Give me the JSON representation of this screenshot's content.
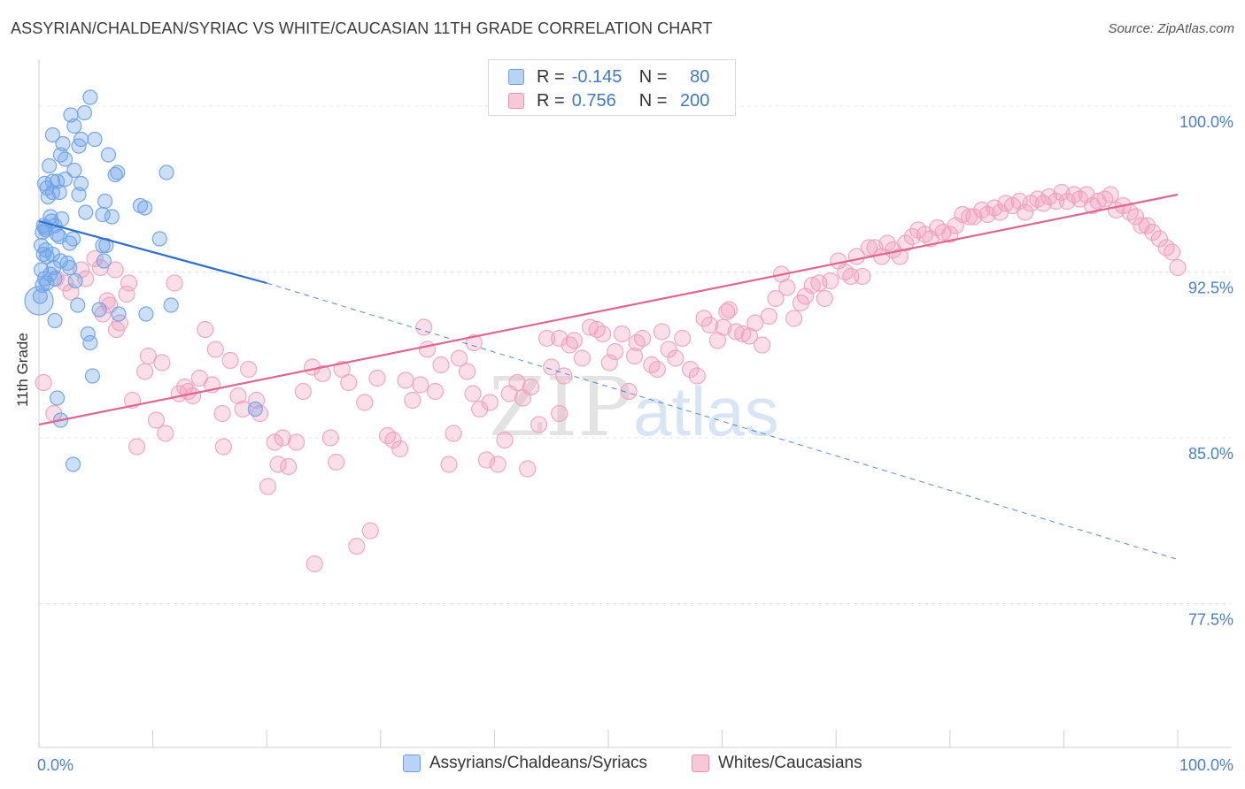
{
  "title": "ASSYRIAN/CHALDEAN/SYRIAC VS WHITE/CAUCASIAN 11TH GRADE CORRELATION CHART",
  "source": "Source: ZipAtlas.com",
  "watermark": {
    "zip": "ZIP",
    "atlas": "atlas"
  },
  "legend": {
    "rows": [
      {
        "r_label": "R =",
        "r_value": "-0.145",
        "n_label": "N =",
        "n_value": "80"
      },
      {
        "r_label": "R =",
        "r_value": "0.756",
        "n_label": "N =",
        "n_value": "200"
      }
    ]
  },
  "chart_data": {
    "type": "scatter",
    "title": "ASSYRIAN/CHALDEAN/SYRIAC VS WHITE/CAUCASIAN 11TH GRADE CORRELATION CHART",
    "xlabel": "",
    "ylabel": "11th Grade",
    "xlim": [
      0,
      100
    ],
    "ylim": [
      70,
      100
    ],
    "x_tick_labels": [
      "0.0%",
      "100.0%"
    ],
    "y_ticks": [
      77.5,
      85.0,
      92.5,
      100.0
    ],
    "y_tick_labels": [
      "77.5%",
      "85.0%",
      "92.5%",
      "100.0%"
    ],
    "grid": "horizontal dashed",
    "legend_position": "bottom",
    "colors": {
      "blue": "#6fa3e8",
      "blue_line": "#2c6fcf",
      "pink": "#f0a0bd",
      "pink_line": "#e06690"
    },
    "series": [
      {
        "name": "Assyrians/Chaldeans/Syriacs",
        "color": "#6fa3e8",
        "trend": {
          "x": [
            0,
            20
          ],
          "y": [
            94.8,
            92.0
          ],
          "dashed_extension": {
            "x": [
              20,
              100
            ],
            "y": [
              92.0,
              79.5
            ]
          }
        },
        "points": [
          [
            4.5,
            100.4
          ],
          [
            4.0,
            99.7
          ],
          [
            2.8,
            99.6
          ],
          [
            3.1,
            99.1
          ],
          [
            1.2,
            98.7
          ],
          [
            3.7,
            98.5
          ],
          [
            4.9,
            98.5
          ],
          [
            2.1,
            98.3
          ],
          [
            3.5,
            98.2
          ],
          [
            1.9,
            97.8
          ],
          [
            6.1,
            97.8
          ],
          [
            2.3,
            97.6
          ],
          [
            0.9,
            97.3
          ],
          [
            6.9,
            97.0
          ],
          [
            3.1,
            97.1
          ],
          [
            11.2,
            97.0
          ],
          [
            6.7,
            96.9
          ],
          [
            0.5,
            96.5
          ],
          [
            1.6,
            96.6
          ],
          [
            1.2,
            96.6
          ],
          [
            2.3,
            96.7
          ],
          [
            0.7,
            96.3
          ],
          [
            3.7,
            96.5
          ],
          [
            1.8,
            96.1
          ],
          [
            1.2,
            96.1
          ],
          [
            3.5,
            96.0
          ],
          [
            5.8,
            95.7
          ],
          [
            8.9,
            95.5
          ],
          [
            9.3,
            95.4
          ],
          [
            4.1,
            95.2
          ],
          [
            5.6,
            95.1
          ],
          [
            6.4,
            95.0
          ],
          [
            1.0,
            95.0
          ],
          [
            0.4,
            94.6
          ],
          [
            0.5,
            94.5
          ],
          [
            1.1,
            94.8
          ],
          [
            1.4,
            94.6
          ],
          [
            0.6,
            94.4
          ],
          [
            0.3,
            94.3
          ],
          [
            1.6,
            94.2
          ],
          [
            1.8,
            94.1
          ],
          [
            3.0,
            94.0
          ],
          [
            10.6,
            94.0
          ],
          [
            2.7,
            93.8
          ],
          [
            5.9,
            93.7
          ],
          [
            5.6,
            93.7
          ],
          [
            0.6,
            93.5
          ],
          [
            0.4,
            93.3
          ],
          [
            1.2,
            93.3
          ],
          [
            0.7,
            93.2
          ],
          [
            1.9,
            93.0
          ],
          [
            5.7,
            93.0
          ],
          [
            2.5,
            92.9
          ],
          [
            1.3,
            92.7
          ],
          [
            2.7,
            92.7
          ],
          [
            0.2,
            92.6
          ],
          [
            1.0,
            92.4
          ],
          [
            0.5,
            92.2
          ],
          [
            1.4,
            92.2
          ],
          [
            0.7,
            92.0
          ],
          [
            0.3,
            91.9
          ],
          [
            0.1,
            91.4
          ],
          [
            3.4,
            91.0
          ],
          [
            5.3,
            90.8
          ],
          [
            9.4,
            90.6
          ],
          [
            7.0,
            90.6
          ],
          [
            11.6,
            91.0
          ],
          [
            1.4,
            90.3
          ],
          [
            4.3,
            89.7
          ],
          [
            4.5,
            89.3
          ],
          [
            4.7,
            87.8
          ],
          [
            1.6,
            86.8
          ],
          [
            19.0,
            86.3
          ],
          [
            1.9,
            85.8
          ],
          [
            3.0,
            83.8
          ],
          [
            0.0,
            91.2
          ],
          [
            0.2,
            93.7
          ],
          [
            2.0,
            94.9
          ],
          [
            0.8,
            95.9
          ],
          [
            3.2,
            92.1
          ]
        ]
      },
      {
        "name": "Whites/Caucasians",
        "color": "#f0a0bd",
        "trend": {
          "x": [
            0,
            100
          ],
          "y": [
            85.6,
            96.0
          ]
        },
        "points": [
          [
            0.4,
            87.5
          ],
          [
            1.3,
            86.1
          ],
          [
            1.5,
            92.2
          ],
          [
            2.3,
            92.0
          ],
          [
            2.8,
            91.6
          ],
          [
            3.7,
            92.6
          ],
          [
            4.1,
            92.2
          ],
          [
            4.9,
            93.1
          ],
          [
            5.4,
            92.7
          ],
          [
            5.6,
            90.6
          ],
          [
            6.0,
            91.2
          ],
          [
            6.2,
            91.0
          ],
          [
            6.7,
            92.6
          ],
          [
            6.8,
            89.9
          ],
          [
            7.1,
            90.2
          ],
          [
            7.7,
            91.5
          ],
          [
            7.9,
            92.0
          ],
          [
            8.2,
            86.7
          ],
          [
            8.6,
            84.6
          ],
          [
            9.3,
            88.0
          ],
          [
            9.6,
            88.7
          ],
          [
            10.3,
            85.8
          ],
          [
            10.8,
            88.4
          ],
          [
            11.1,
            85.2
          ],
          [
            11.9,
            92.0
          ],
          [
            12.3,
            87.0
          ],
          [
            12.8,
            87.3
          ],
          [
            13.1,
            87.1
          ],
          [
            13.5,
            86.9
          ],
          [
            14.1,
            87.7
          ],
          [
            14.6,
            89.9
          ],
          [
            15.2,
            87.4
          ],
          [
            15.5,
            89.0
          ],
          [
            16.1,
            86.1
          ],
          [
            16.2,
            84.6
          ],
          [
            16.8,
            88.5
          ],
          [
            17.5,
            86.9
          ],
          [
            17.9,
            86.3
          ],
          [
            18.4,
            88.1
          ],
          [
            19.1,
            86.7
          ],
          [
            19.4,
            86.1
          ],
          [
            20.1,
            82.8
          ],
          [
            20.7,
            84.8
          ],
          [
            21.0,
            83.8
          ],
          [
            21.4,
            85.0
          ],
          [
            21.9,
            83.7
          ],
          [
            22.6,
            84.8
          ],
          [
            23.2,
            87.1
          ],
          [
            24.0,
            88.2
          ],
          [
            24.2,
            79.3
          ],
          [
            24.9,
            87.9
          ],
          [
            25.6,
            85.0
          ],
          [
            26.1,
            83.9
          ],
          [
            26.6,
            88.1
          ],
          [
            27.2,
            87.5
          ],
          [
            27.9,
            80.1
          ],
          [
            28.6,
            86.6
          ],
          [
            29.1,
            80.8
          ],
          [
            29.7,
            87.7
          ],
          [
            30.6,
            85.1
          ],
          [
            31.1,
            84.9
          ],
          [
            31.7,
            84.5
          ],
          [
            32.2,
            87.6
          ],
          [
            32.8,
            86.7
          ],
          [
            33.5,
            87.4
          ],
          [
            34.1,
            89.0
          ],
          [
            34.8,
            87.1
          ],
          [
            35.3,
            88.3
          ],
          [
            36.0,
            83.8
          ],
          [
            36.4,
            85.2
          ],
          [
            36.9,
            88.6
          ],
          [
            37.6,
            88.0
          ],
          [
            38.1,
            87.0
          ],
          [
            38.7,
            86.3
          ],
          [
            39.3,
            84.0
          ],
          [
            39.6,
            86.6
          ],
          [
            40.3,
            83.8
          ],
          [
            40.9,
            84.9
          ],
          [
            41.3,
            87.0
          ],
          [
            42.0,
            87.5
          ],
          [
            42.5,
            86.8
          ],
          [
            43.2,
            87.3
          ],
          [
            43.9,
            85.6
          ],
          [
            44.6,
            89.5
          ],
          [
            45.0,
            88.2
          ],
          [
            45.7,
            89.5
          ],
          [
            46.1,
            87.8
          ],
          [
            46.6,
            89.2
          ],
          [
            47.0,
            89.4
          ],
          [
            47.7,
            88.6
          ],
          [
            48.4,
            90.0
          ],
          [
            49.0,
            89.9
          ],
          [
            49.5,
            89.7
          ],
          [
            50.1,
            88.4
          ],
          [
            50.6,
            88.9
          ],
          [
            51.2,
            89.7
          ],
          [
            51.8,
            87.1
          ],
          [
            52.5,
            89.3
          ],
          [
            53.0,
            89.5
          ],
          [
            53.8,
            88.3
          ],
          [
            54.3,
            88.1
          ],
          [
            54.7,
            89.8
          ],
          [
            55.3,
            89.0
          ],
          [
            55.9,
            88.6
          ],
          [
            56.5,
            89.5
          ],
          [
            57.2,
            88.1
          ],
          [
            57.8,
            87.8
          ],
          [
            58.4,
            90.4
          ],
          [
            58.9,
            90.1
          ],
          [
            59.6,
            89.4
          ],
          [
            60.1,
            90.0
          ],
          [
            60.6,
            90.8
          ],
          [
            61.2,
            89.8
          ],
          [
            61.8,
            89.7
          ],
          [
            62.4,
            89.6
          ],
          [
            62.9,
            90.2
          ],
          [
            63.5,
            89.2
          ],
          [
            64.1,
            90.5
          ],
          [
            64.7,
            91.3
          ],
          [
            65.2,
            92.4
          ],
          [
            65.7,
            91.8
          ],
          [
            66.3,
            90.4
          ],
          [
            66.9,
            91.1
          ],
          [
            67.3,
            91.4
          ],
          [
            67.9,
            91.9
          ],
          [
            68.5,
            92.0
          ],
          [
            69.0,
            91.3
          ],
          [
            69.5,
            92.1
          ],
          [
            70.2,
            93.0
          ],
          [
            70.8,
            92.5
          ],
          [
            71.3,
            92.3
          ],
          [
            71.8,
            93.2
          ],
          [
            72.3,
            92.3
          ],
          [
            72.9,
            93.6
          ],
          [
            73.4,
            93.6
          ],
          [
            74.0,
            93.2
          ],
          [
            74.5,
            93.8
          ],
          [
            75.0,
            93.5
          ],
          [
            75.6,
            93.2
          ],
          [
            76.1,
            93.8
          ],
          [
            76.7,
            94.1
          ],
          [
            77.2,
            94.4
          ],
          [
            77.8,
            94.2
          ],
          [
            78.3,
            94.0
          ],
          [
            78.9,
            94.5
          ],
          [
            79.4,
            94.3
          ],
          [
            80.0,
            94.2
          ],
          [
            80.5,
            94.6
          ],
          [
            81.1,
            95.1
          ],
          [
            81.7,
            95.0
          ],
          [
            82.1,
            95.0
          ],
          [
            82.8,
            95.3
          ],
          [
            83.3,
            95.1
          ],
          [
            83.9,
            95.4
          ],
          [
            84.4,
            95.2
          ],
          [
            84.9,
            95.6
          ],
          [
            85.5,
            95.5
          ],
          [
            86.1,
            95.7
          ],
          [
            86.6,
            95.2
          ],
          [
            87.1,
            95.6
          ],
          [
            87.7,
            95.8
          ],
          [
            88.2,
            95.6
          ],
          [
            88.7,
            95.9
          ],
          [
            89.3,
            95.7
          ],
          [
            89.8,
            96.1
          ],
          [
            90.3,
            95.7
          ],
          [
            90.9,
            96.0
          ],
          [
            91.4,
            95.8
          ],
          [
            92.0,
            96.0
          ],
          [
            92.5,
            95.5
          ],
          [
            93.0,
            95.7
          ],
          [
            93.6,
            95.8
          ],
          [
            94.1,
            96.0
          ],
          [
            94.6,
            95.3
          ],
          [
            95.2,
            95.5
          ],
          [
            95.8,
            95.2
          ],
          [
            96.3,
            95.0
          ],
          [
            96.8,
            94.6
          ],
          [
            97.3,
            94.6
          ],
          [
            97.8,
            94.3
          ],
          [
            98.4,
            94.0
          ],
          [
            99.0,
            93.6
          ],
          [
            99.5,
            93.4
          ],
          [
            100.0,
            92.7
          ],
          [
            33.8,
            90.0
          ],
          [
            38.2,
            89.3
          ],
          [
            42.9,
            83.6
          ],
          [
            45.7,
            86.1
          ],
          [
            52.3,
            88.7
          ],
          [
            60.4,
            90.7
          ]
        ]
      }
    ]
  },
  "bottom_legend": [
    "Assyrians/Chaldeans/Syriacs",
    "Whites/Caucasians"
  ]
}
